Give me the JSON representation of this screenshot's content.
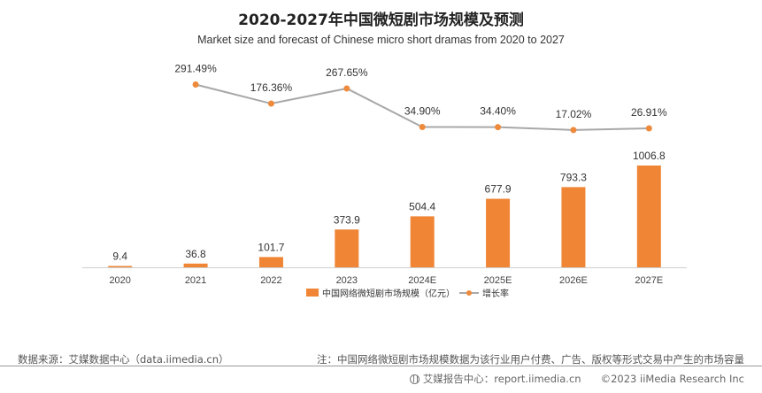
{
  "header": {
    "title": "2020-2027年中国微短剧市场规模及预测",
    "subtitle": "Market size and forecast of Chinese micro short dramas from 2020 to 2027"
  },
  "chart_data": {
    "type": "bar",
    "categories": [
      "2020",
      "2021",
      "2022",
      "2023",
      "2024E",
      "2025E",
      "2026E",
      "2027E"
    ],
    "series": [
      {
        "name": "中国网络微短剧市场规模（亿元）",
        "type": "bar",
        "values": [
          9.4,
          36.8,
          101.7,
          373.9,
          504.4,
          677.9,
          793.3,
          1006.8
        ],
        "labels": [
          "9.4",
          "36.8",
          "101.7",
          "373.9",
          "504.4",
          "677.9",
          "793.3",
          "1006.8"
        ]
      },
      {
        "name": "增长率",
        "type": "line",
        "values": [
          null,
          291.49,
          176.36,
          267.65,
          34.9,
          34.4,
          17.02,
          26.91
        ],
        "labels": [
          "",
          "291.49%",
          "176.36%",
          "267.65%",
          "34.90%",
          "34.40%",
          "17.02%",
          "26.91%"
        ]
      }
    ],
    "bar_color": "#ef8535",
    "line_color": "#a8a8a8",
    "marker_color": "#ee8a3c",
    "legend_position": "bottom-center",
    "grid": false
  },
  "footer": {
    "source": "数据来源：艾媒数据中心（data.iimedia.cn）",
    "note": "注：中国网络微短剧市场规模数据为该行业用户付费、广告、版权等形式交易中产生的市场容量",
    "site": "艾媒报告中心：report.iimedia.cn",
    "copyright": "©2023  iiMedia Research Inc"
  }
}
